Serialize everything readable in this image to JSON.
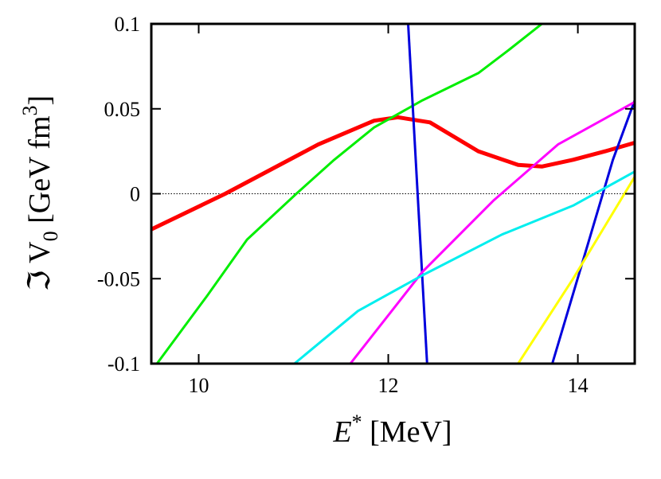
{
  "chart_data": {
    "type": "line",
    "xlabel": {
      "main": "E",
      "sup": "*",
      "rest": " [MeV]"
    },
    "ylabel": {
      "main": "ℑ V",
      "sub": "0",
      "rest": " [GeV fm",
      "sup": "3",
      "end": "]"
    },
    "xlim": [
      9.5,
      14.6
    ],
    "xticks": [
      10,
      12,
      14
    ],
    "ylim": [
      -0.1,
      0.1
    ],
    "yticks": [
      -0.1,
      -0.05,
      0,
      0.05,
      0.1
    ],
    "zero_line": true,
    "series": [
      {
        "color": "#ff0000",
        "width": 5,
        "x": [
          9.5,
          10.28,
          11.26,
          11.85,
          12.1,
          12.44,
          12.95,
          13.37,
          13.62,
          13.95,
          14.29,
          14.6
        ],
        "values": [
          -0.021,
          0,
          0.029,
          0.043,
          0.045,
          0.042,
          0.025,
          0.017,
          0.016,
          0.02,
          0.025,
          0.03
        ]
      },
      {
        "color": "#00ee00",
        "width": 3,
        "x": [
          9.56,
          10.09,
          10.51,
          11.03,
          11.43,
          11.85,
          12.36,
          12.95,
          13.28,
          13.62
        ],
        "values": [
          -0.1,
          -0.06,
          -0.027,
          0,
          0.02,
          0.039,
          0.055,
          0.071,
          0.085,
          0.1
        ]
      },
      {
        "color": "#0000dd",
        "width": 3,
        "x": [
          12.21,
          12.41
        ],
        "values": [
          0.1,
          -0.1
        ]
      },
      {
        "color": "#0000dd",
        "width": 3,
        "x": [
          13.73,
          14.12,
          14.37,
          14.6
        ],
        "values": [
          -0.1,
          -0.027,
          0.02,
          0.055
        ]
      },
      {
        "color": "#ff00ff",
        "width": 3,
        "x": [
          11.6,
          12.36,
          13.11,
          13.79,
          14.6
        ],
        "values": [
          -0.1,
          -0.046,
          -0.004,
          0.029,
          0.054
        ]
      },
      {
        "color": "#00eeee",
        "width": 3,
        "x": [
          11.01,
          11.68,
          12.36,
          13.2,
          13.95,
          14.6
        ],
        "values": [
          -0.1,
          -0.069,
          -0.048,
          -0.024,
          -0.007,
          0.013
        ]
      },
      {
        "color": "#ffff00",
        "width": 3,
        "x": [
          13.37,
          13.95,
          14.6
        ],
        "values": [
          -0.1,
          -0.05,
          0.01
        ]
      }
    ]
  }
}
